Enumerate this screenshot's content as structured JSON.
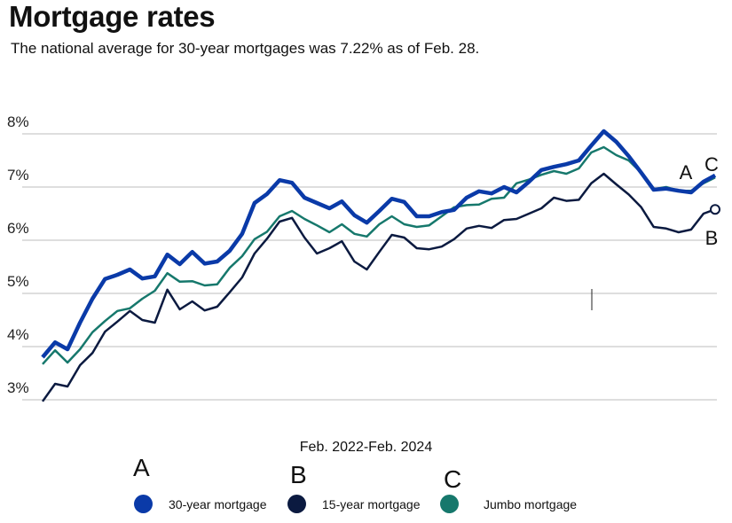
{
  "header": {
    "title": "Mortgage rates",
    "subtitle": "The national average for 30-year mortgages was 7.22% as of Feb. 28."
  },
  "chart_data": {
    "type": "line",
    "title": "Mortgage rates",
    "subtitle": "The national average for 30-year mortgages was 7.22% as of Feb. 28.",
    "xlabel": "Feb. 2022-Feb. 2024",
    "ylabel": "",
    "ylim": [
      3,
      8
    ],
    "yticks": [
      3,
      4,
      5,
      6,
      7,
      8
    ],
    "ytick_labels": [
      "3%",
      "4%",
      "5%",
      "6%",
      "7%",
      "8%"
    ],
    "grid": "horizontal",
    "legend_placement": "bottom",
    "x": [
      "2022-02-03",
      "2022-02-17",
      "2022-03-03",
      "2022-03-17",
      "2022-03-31",
      "2022-04-14",
      "2022-04-28",
      "2022-05-12",
      "2022-05-26",
      "2022-06-09",
      "2022-06-23",
      "2022-07-07",
      "2022-07-21",
      "2022-08-04",
      "2022-08-18",
      "2022-09-01",
      "2022-09-15",
      "2022-09-29",
      "2022-10-13",
      "2022-10-27",
      "2022-11-10",
      "2022-11-24",
      "2022-12-08",
      "2022-12-22",
      "2023-01-05",
      "2023-01-19",
      "2023-02-02",
      "2023-02-16",
      "2023-03-02",
      "2023-03-16",
      "2023-03-30",
      "2023-04-13",
      "2023-04-27",
      "2023-05-11",
      "2023-05-25",
      "2023-06-08",
      "2023-06-22",
      "2023-07-06",
      "2023-07-20",
      "2023-08-03",
      "2023-08-17",
      "2023-08-31",
      "2023-09-14",
      "2023-09-28",
      "2023-10-12",
      "2023-10-26",
      "2023-11-09",
      "2023-11-23",
      "2023-12-07",
      "2023-12-21",
      "2024-01-04",
      "2024-01-18",
      "2024-02-01",
      "2024-02-15",
      "2024-02-28"
    ],
    "series": [
      {
        "name": "30-year mortgage",
        "letter": "A",
        "color": "#0a3aa8",
        "values": [
          3.8,
          4.08,
          3.95,
          4.45,
          4.9,
          5.27,
          5.35,
          5.45,
          5.28,
          5.32,
          5.73,
          5.55,
          5.78,
          5.56,
          5.6,
          5.8,
          6.12,
          6.7,
          6.87,
          7.13,
          7.08,
          6.8,
          6.7,
          6.6,
          6.73,
          6.47,
          6.33,
          6.55,
          6.78,
          6.72,
          6.45,
          6.45,
          6.53,
          6.57,
          6.8,
          6.92,
          6.88,
          7.0,
          6.9,
          7.1,
          7.32,
          7.38,
          7.43,
          7.5,
          7.78,
          8.05,
          7.85,
          7.58,
          7.27,
          6.95,
          6.97,
          6.93,
          6.9,
          7.1,
          7.22
        ]
      },
      {
        "name": "15-year mortgage",
        "letter": "B",
        "color": "#0b1a40",
        "values": [
          2.97,
          3.3,
          3.25,
          3.65,
          3.88,
          4.28,
          4.47,
          4.67,
          4.5,
          4.45,
          5.07,
          4.7,
          4.85,
          4.68,
          4.75,
          5.02,
          5.3,
          5.75,
          6.03,
          6.35,
          6.42,
          6.05,
          5.75,
          5.85,
          5.98,
          5.6,
          5.45,
          5.78,
          6.1,
          6.05,
          5.85,
          5.83,
          5.88,
          6.02,
          6.22,
          6.27,
          6.23,
          6.38,
          6.4,
          6.5,
          6.6,
          6.8,
          6.74,
          6.76,
          7.07,
          7.25,
          7.05,
          6.86,
          6.62,
          6.25,
          6.22,
          6.15,
          6.2,
          6.5,
          6.58
        ]
      },
      {
        "name": "Jumbo mortgage",
        "letter": "C",
        "color": "#16786c",
        "values": [
          3.67,
          3.93,
          3.7,
          3.95,
          4.27,
          4.48,
          4.67,
          4.72,
          4.9,
          5.05,
          5.38,
          5.22,
          5.23,
          5.15,
          5.17,
          5.48,
          5.7,
          6.02,
          6.16,
          6.45,
          6.55,
          6.4,
          6.28,
          6.15,
          6.3,
          6.12,
          6.07,
          6.3,
          6.45,
          6.3,
          6.25,
          6.28,
          6.45,
          6.62,
          6.66,
          6.67,
          6.78,
          6.8,
          7.07,
          7.14,
          7.23,
          7.3,
          7.25,
          7.35,
          7.65,
          7.75,
          7.6,
          7.5,
          7.27,
          6.96,
          7.0,
          6.93,
          6.93,
          7.07,
          7.18
        ]
      }
    ]
  }
}
